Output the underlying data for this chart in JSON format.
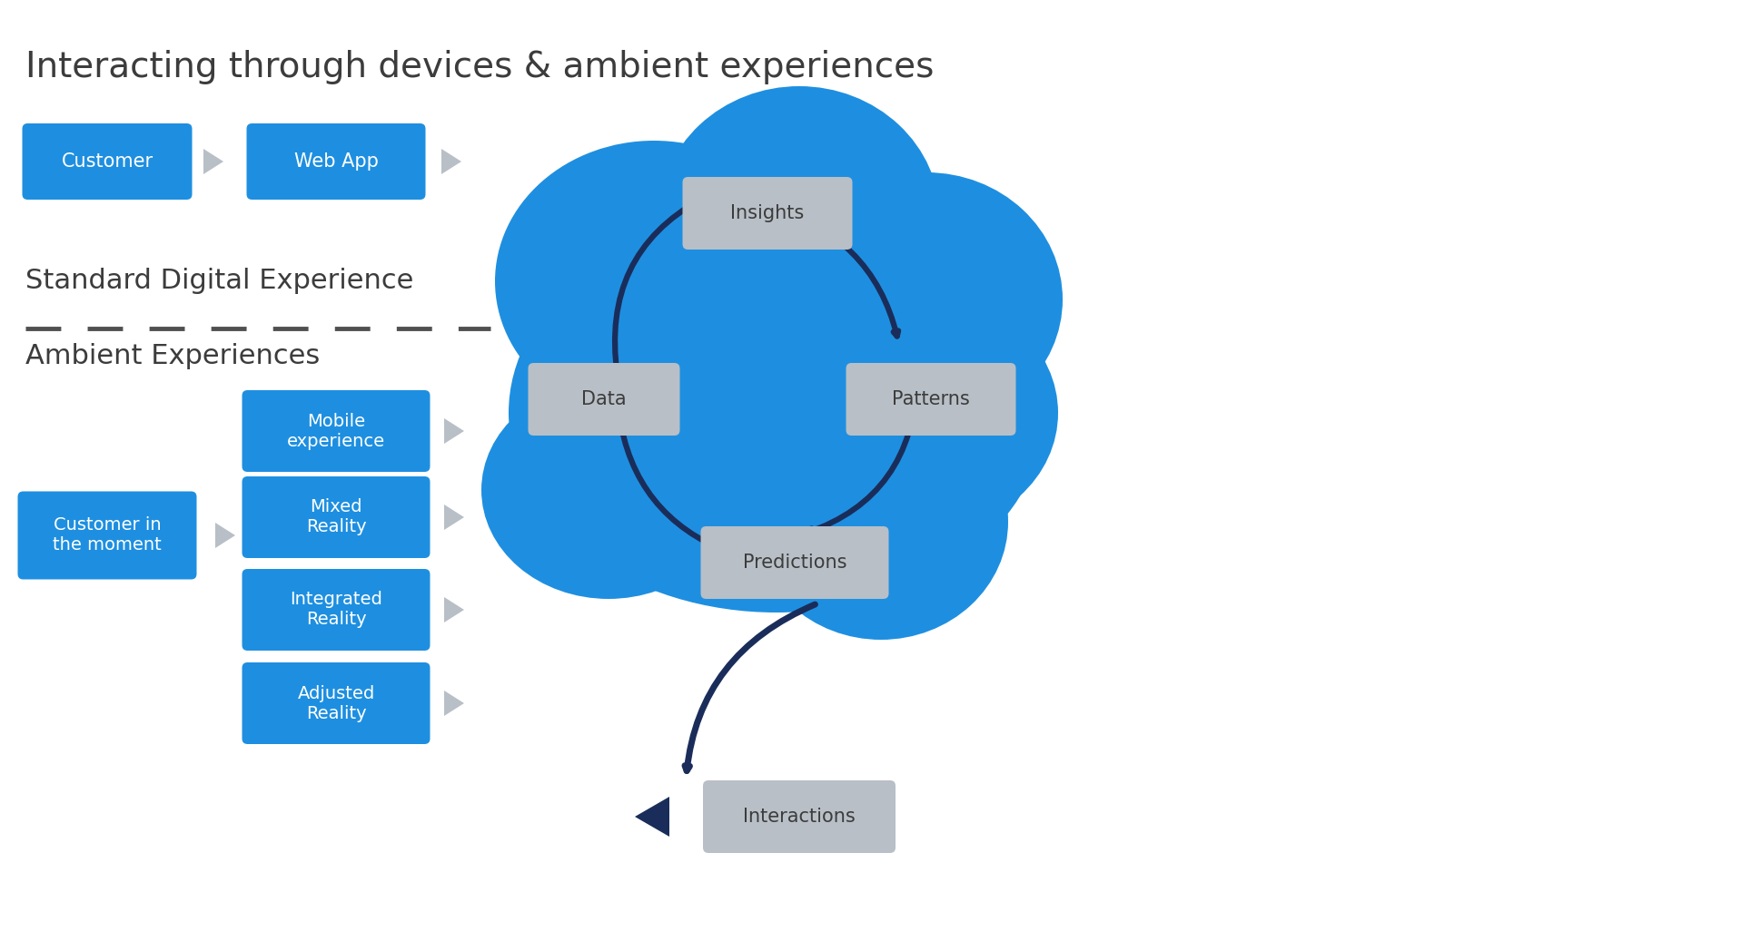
{
  "title": "Interacting through devices & ambient experiences",
  "title_color": "#3c3c3c",
  "background_color": "#ffffff",
  "blue_box_color": "#1e8fe0",
  "blue_box_text_color": "#ffffff",
  "gray_box_color": "#b8bfc7",
  "gray_box_text_color": "#3c3c3c",
  "gray_arrow_color": "#b0b8c0",
  "cloud_color": "#1e8fe0",
  "cycle_arrow_color": "#1a2d5a",
  "dashed_line_color": "#505050",
  "section_label_standard": "Standard Digital Experience",
  "section_label_ambient": "Ambient Experiences",
  "figw": 19.18,
  "figh": 10.26
}
